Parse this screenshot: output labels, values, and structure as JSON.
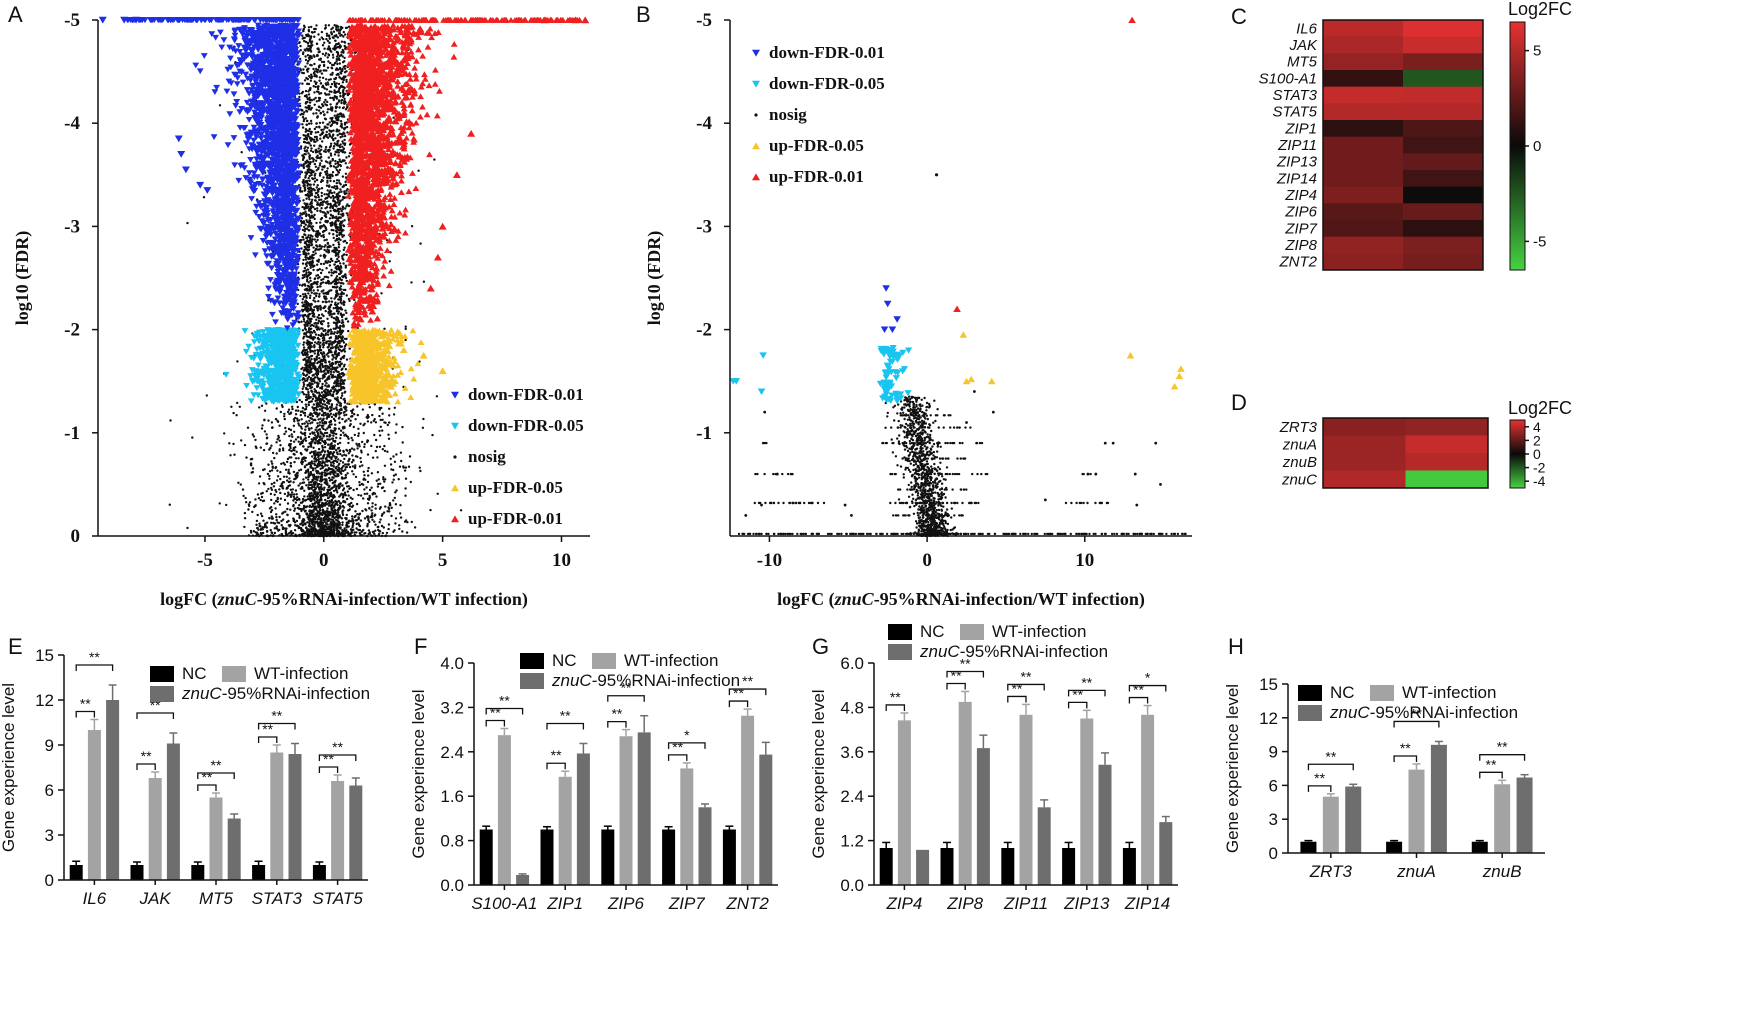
{
  "colors": {
    "down001": "#1f2fe6",
    "down005": "#19c4f0",
    "nosig": "#111111",
    "up005": "#f7c42a",
    "up001": "#f02020",
    "nc": "#000000",
    "wt": "#a3a3a3",
    "rnai": "#6e6e6e"
  },
  "chart_data": [
    {
      "id": "A",
      "type": "scatter",
      "panel_label": "A",
      "xlabel": "logFC (znuC-95%RNAi-infection/WT infection)",
      "xlabel_parts": [
        "logFC (",
        "znuC",
        "-95%RNAi-infection/WT infection)"
      ],
      "ylabel": "log10 (FDR)",
      "xlim": [
        -9.5,
        11.2
      ],
      "ylim": [
        0,
        -5
      ],
      "xticks": [
        -5,
        0,
        5,
        10
      ],
      "yticks": [
        0,
        -1,
        -2,
        -3,
        -4,
        -5
      ],
      "legend": [
        "down-FDR-0.01",
        "down-FDR-0.05",
        "nosig",
        "up-FDR-0.05",
        "up-FDR-0.01"
      ]
    },
    {
      "id": "B",
      "type": "scatter",
      "panel_label": "B",
      "xlabel": "logFC (znuC-95%RNAi-infection/WT infection)",
      "xlabel_parts": [
        "logFC (",
        "znuC",
        "-95%RNAi-infection/WT infection)"
      ],
      "ylabel": "log10 (FDR)",
      "xlim": [
        -12.5,
        16.8
      ],
      "ylim": [
        0,
        -5
      ],
      "xticks": [
        -10,
        0,
        10
      ],
      "yticks": [
        -1,
        -2,
        -3,
        -4,
        -5
      ],
      "legend": [
        "down-FDR-0.01",
        "down-FDR-0.05",
        "nosig",
        "up-FDR-0.05",
        "up-FDR-0.01"
      ],
      "points": [
        {
          "x": 13.0,
          "y": -5.0,
          "c": "up001"
        },
        {
          "x": 1.9,
          "y": -2.2,
          "c": "up001"
        },
        {
          "x": 12.9,
          "y": -1.75,
          "c": "up005"
        },
        {
          "x": 2.3,
          "y": -1.95,
          "c": "up005"
        },
        {
          "x": 2.5,
          "y": -1.5,
          "c": "up005"
        },
        {
          "x": 2.8,
          "y": -1.52,
          "c": "up005"
        },
        {
          "x": 4.1,
          "y": -1.5,
          "c": "up005"
        },
        {
          "x": 15.7,
          "y": -1.45,
          "c": "up005"
        },
        {
          "x": 16.0,
          "y": -1.55,
          "c": "up005"
        },
        {
          "x": 16.1,
          "y": -1.62,
          "c": "up005"
        },
        {
          "x": -2.6,
          "y": -2.4,
          "c": "down001"
        },
        {
          "x": -2.5,
          "y": -2.25,
          "c": "down001"
        },
        {
          "x": -2.7,
          "y": -2.0,
          "c": "down001"
        },
        {
          "x": -1.9,
          "y": -2.1,
          "c": "down001"
        },
        {
          "x": -2.2,
          "y": -2.0,
          "c": "down001"
        },
        {
          "x": -12.3,
          "y": -1.5,
          "c": "down005"
        },
        {
          "x": -12.1,
          "y": -1.5,
          "c": "down005"
        },
        {
          "x": -10.4,
          "y": -1.75,
          "c": "down005"
        },
        {
          "x": -10.5,
          "y": -1.4,
          "c": "down005"
        },
        {
          "x": 0.6,
          "y": -3.5,
          "c": "nosig"
        }
      ]
    },
    {
      "id": "C",
      "type": "heatmap",
      "panel_label": "C",
      "colorbar_title": "Log2FC",
      "rows": [
        "IL6",
        "JAK",
        "MT5",
        "S100-A1",
        "STAT3",
        "STAT5",
        "ZIP1",
        "ZIP11",
        "ZIP13",
        "ZIP14",
        "ZIP4",
        "ZIP6",
        "ZIP7",
        "ZIP8",
        "ZNT2"
      ],
      "values": [
        [
          5.2,
          6.2
        ],
        [
          4.8,
          5.6
        ],
        [
          4.1,
          3.3
        ],
        [
          1.2,
          -2.5
        ],
        [
          5.5,
          5.4
        ],
        [
          5.0,
          5.0
        ],
        [
          1.0,
          2.0
        ],
        [
          3.0,
          1.6
        ],
        [
          3.0,
          2.6
        ],
        [
          3.0,
          1.6
        ],
        [
          3.4,
          0.1
        ],
        [
          2.3,
          2.8
        ],
        [
          2.1,
          1.0
        ],
        [
          4.0,
          3.4
        ],
        [
          3.8,
          3.2
        ]
      ],
      "vmin": -6.5,
      "vmax": 6.5,
      "cticks": [
        5,
        0,
        -5
      ]
    },
    {
      "id": "D",
      "type": "heatmap",
      "panel_label": "D",
      "colorbar_title": "Log2FC",
      "rows": [
        "ZRT3",
        "znuA",
        "znuB",
        "znuC"
      ],
      "values": [
        [
          2.9,
          3.1
        ],
        [
          3.3,
          4.3
        ],
        [
          3.3,
          3.9
        ],
        [
          3.8,
          -4.8
        ]
      ],
      "vmin": -5,
      "vmax": 5,
      "cticks": [
        4,
        2,
        0,
        -2,
        -4
      ]
    },
    {
      "id": "E",
      "type": "bar",
      "panel_label": "E",
      "ylabel": "Gene experience level",
      "categories": [
        "IL6",
        "JAK",
        "MT5",
        "STAT3",
        "STAT5"
      ],
      "ylim": [
        0,
        15
      ],
      "yticks": [
        0,
        3,
        6,
        9,
        12,
        15
      ],
      "legend_layout": "two-row",
      "series": [
        {
          "name": "NC",
          "values": [
            1.0,
            1.0,
            1.0,
            1.0,
            1.0
          ],
          "err": [
            0.25,
            0.2,
            0.2,
            0.25,
            0.2
          ]
        },
        {
          "name": "WT-infection",
          "values": [
            10.0,
            6.8,
            5.5,
            8.5,
            6.6
          ],
          "err": [
            0.7,
            0.4,
            0.3,
            0.5,
            0.4
          ]
        },
        {
          "name": "znuC-95%RNAi-infection",
          "values": [
            12.0,
            9.1,
            4.1,
            8.4,
            6.3
          ],
          "err": [
            1.0,
            0.7,
            0.3,
            0.7,
            0.5
          ]
        }
      ],
      "sig": [
        [
          "**",
          "**"
        ],
        [
          "**",
          "**"
        ],
        [
          "**",
          "**"
        ],
        [
          "**",
          "**"
        ],
        [
          "**",
          "**"
        ]
      ]
    },
    {
      "id": "F",
      "type": "bar",
      "panel_label": "F",
      "ylabel": "Gene experience level",
      "categories": [
        "S100-A1",
        "ZIP1",
        "ZIP6",
        "ZIP7",
        "ZNT2"
      ],
      "ylim": [
        0,
        4.0
      ],
      "yticks": [
        0.0,
        0.8,
        1.6,
        2.4,
        3.2,
        4.0
      ],
      "legend_layout": "two-row",
      "series": [
        {
          "name": "NC",
          "values": [
            1.0,
            1.0,
            1.0,
            1.0,
            1.0
          ],
          "err": [
            0.06,
            0.05,
            0.06,
            0.05,
            0.06
          ]
        },
        {
          "name": "WT-infection",
          "values": [
            2.7,
            1.95,
            2.68,
            2.1,
            3.05
          ],
          "err": [
            0.12,
            0.1,
            0.12,
            0.1,
            0.12
          ]
        },
        {
          "name": "znuC-95%RNAi-infection",
          "values": [
            0.18,
            2.37,
            2.75,
            1.4,
            2.35
          ],
          "err": [
            0.02,
            0.18,
            0.3,
            0.06,
            0.22
          ]
        }
      ],
      "sig": [
        [
          "**",
          "**"
        ],
        [
          "**",
          "**"
        ],
        [
          "**",
          "**"
        ],
        [
          "**",
          "*"
        ],
        [
          "**",
          "**"
        ]
      ]
    },
    {
      "id": "G",
      "type": "bar",
      "panel_label": "G",
      "ylabel": "Gene experience level",
      "categories": [
        "ZIP4",
        "ZIP8",
        "ZIP11",
        "ZIP13",
        "ZIP14"
      ],
      "ylim": [
        0,
        6.0
      ],
      "yticks": [
        0.0,
        1.2,
        2.4,
        3.6,
        4.8,
        6.0
      ],
      "legend_layout": "two-row",
      "series": [
        {
          "name": "NC",
          "values": [
            1.0,
            1.0,
            1.0,
            1.0,
            1.0
          ],
          "err": [
            0.15,
            0.15,
            0.15,
            0.15,
            0.15
          ]
        },
        {
          "name": "WT-infection",
          "values": [
            4.45,
            4.95,
            4.6,
            4.5,
            4.6
          ],
          "err": [
            0.2,
            0.28,
            0.28,
            0.22,
            0.25
          ]
        },
        {
          "name": "znuC-95%RNAi-infection",
          "values": [
            0.95,
            3.7,
            2.1,
            3.25,
            1.7
          ],
          "err": [
            0.0,
            0.35,
            0.2,
            0.32,
            0.15
          ]
        }
      ],
      "sig": [
        [
          "**",
          ""
        ],
        [
          "**",
          "**"
        ],
        [
          "**",
          "**"
        ],
        [
          "**",
          "**"
        ],
        [
          "**",
          "*"
        ]
      ]
    },
    {
      "id": "H",
      "type": "bar",
      "panel_label": "H",
      "ylabel": "Gene experience level",
      "categories": [
        "ZRT3",
        "znuA",
        "znuB"
      ],
      "ylim": [
        0,
        15
      ],
      "yticks": [
        0,
        3,
        6,
        9,
        12,
        15
      ],
      "legend_layout": "two-row",
      "series": [
        {
          "name": "NC",
          "values": [
            1.0,
            1.0,
            1.0
          ],
          "err": [
            0.1,
            0.1,
            0.1
          ]
        },
        {
          "name": "WT-infection",
          "values": [
            5.0,
            7.4,
            6.1
          ],
          "err": [
            0.25,
            0.5,
            0.35
          ]
        },
        {
          "name": "znuC-95%RNAi-infection",
          "values": [
            5.9,
            9.6,
            6.7
          ],
          "err": [
            0.2,
            0.3,
            0.25
          ]
        }
      ],
      "sig": [
        [
          "**",
          "**"
        ],
        [
          "**",
          "**"
        ],
        [
          "**",
          "**"
        ]
      ]
    }
  ]
}
